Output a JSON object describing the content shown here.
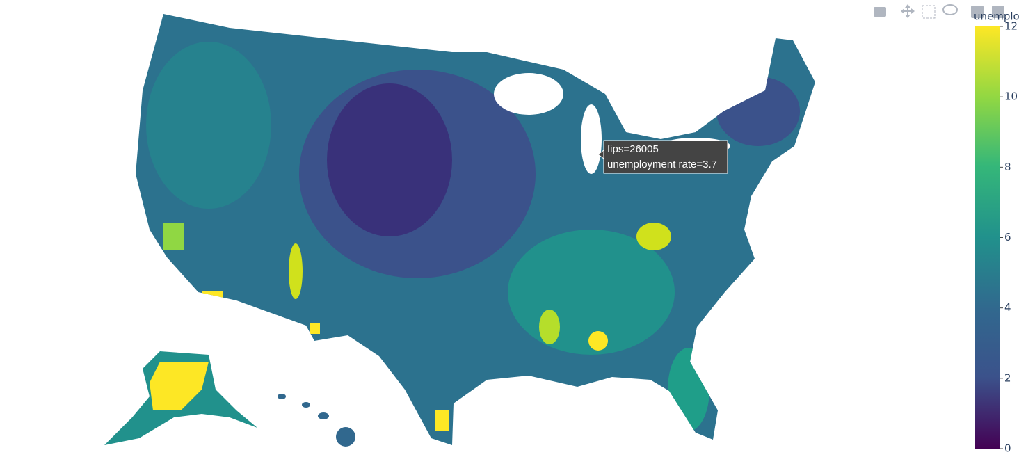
{
  "colorbar": {
    "title": "unemplo",
    "range": [
      0,
      12
    ],
    "ticks": [
      0,
      2,
      4,
      6,
      8,
      10,
      12
    ]
  },
  "tooltip": {
    "lines": [
      "fips=26005",
      "unemployment rate=3.7"
    ]
  }
}
